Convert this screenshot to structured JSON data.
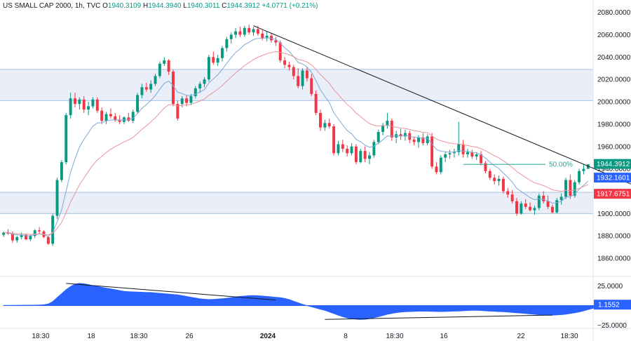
{
  "header": {
    "symbol": "US SMALL CAP 2000, 1h, TVC",
    "open_label": "O",
    "open": "1940.3109",
    "high_label": "H",
    "high": "1944.3940",
    "low_label": "L",
    "low": "1940.3011",
    "close_label": "C",
    "close": "1944.3912",
    "change": "+4.0771 (+0.21%)"
  },
  "colors": {
    "up": "#089981",
    "down": "#f23645",
    "ema_fast": "#7eaad6",
    "ema_slow": "#e8959b",
    "zone_fill": "#e9eef8",
    "zone_line": "#a9c4e8",
    "osc": "#2962ff",
    "trend": "#131722"
  },
  "chart_data": [
    {
      "type": "candlestick",
      "series_name": "US SMALL CAP 2000",
      "ylim": [
        1845,
        2086
      ],
      "y_ticks": [
        "2080.0000",
        "2060.0000",
        "2040.0000",
        "2020.0000",
        "2000.0000",
        "1980.0000",
        "1960.0000",
        "1940.0000",
        "1920.0000",
        "1900.0000",
        "1880.0000",
        "1860.0000"
      ],
      "x_ticks": [
        "18:30",
        "18",
        "18:30",
        "26",
        "2024",
        "8",
        "18:30",
        "16",
        "22",
        "18:30"
      ],
      "candles": [
        [
          1881,
          1884,
          1879,
          1883
        ],
        [
          1883,
          1886,
          1881,
          1882
        ],
        [
          1882,
          1884,
          1874,
          1876
        ],
        [
          1876,
          1880,
          1874,
          1879
        ],
        [
          1879,
          1883,
          1877,
          1881
        ],
        [
          1881,
          1882,
          1876,
          1877
        ],
        [
          1877,
          1881,
          1875,
          1880
        ],
        [
          1880,
          1886,
          1878,
          1885
        ],
        [
          1885,
          1888,
          1882,
          1884
        ],
        [
          1884,
          1885,
          1878,
          1879
        ],
        [
          1879,
          1880,
          1872,
          1873
        ],
        [
          1873,
          1900,
          1871,
          1898
        ],
        [
          1898,
          1932,
          1895,
          1930
        ],
        [
          1930,
          1948,
          1928,
          1946
        ],
        [
          1946,
          1990,
          1944,
          1988
        ],
        [
          1988,
          2008,
          1985,
          2003
        ],
        [
          2003,
          2008,
          1995,
          1998
        ],
        [
          1998,
          2004,
          1993,
          2002
        ],
        [
          2002,
          2005,
          1990,
          1993
        ],
        [
          1993,
          2000,
          1988,
          1996
        ],
        [
          1996,
          2004,
          1994,
          2002
        ],
        [
          2002,
          2004,
          1990,
          1992
        ],
        [
          1992,
          1995,
          1980,
          1983
        ],
        [
          1983,
          1991,
          1980,
          1989
        ],
        [
          1989,
          1994,
          1985,
          1987
        ],
        [
          1987,
          1990,
          1982,
          1984
        ],
        [
          1984,
          1988,
          1980,
          1982
        ],
        [
          1982,
          1987,
          1980,
          1986
        ],
        [
          1986,
          1990,
          1982,
          1983
        ],
        [
          1983,
          1993,
          1981,
          1991
        ],
        [
          1991,
          2008,
          1990,
          2006
        ],
        [
          2006,
          2016,
          2003,
          2013
        ],
        [
          2013,
          2017,
          2009,
          2011
        ],
        [
          2011,
          2019,
          2008,
          2016
        ],
        [
          2016,
          2025,
          2014,
          2023
        ],
        [
          2023,
          2036,
          2021,
          2034
        ],
        [
          2034,
          2040,
          2032,
          2037
        ],
        [
          2037,
          2038,
          2024,
          2027
        ],
        [
          2027,
          2029,
          1996,
          1998
        ],
        [
          1998,
          2001,
          1983,
          1985
        ],
        [
          1998,
          2005,
          1995,
          2003
        ],
        [
          2003,
          2006,
          1996,
          1999
        ],
        [
          1999,
          2007,
          1997,
          2005
        ],
        [
          2005,
          2014,
          2003,
          2012
        ],
        [
          2012,
          2018,
          2008,
          2016
        ],
        [
          2016,
          2022,
          2013,
          2020
        ],
        [
          2020,
          2042,
          2018,
          2040
        ],
        [
          2040,
          2045,
          2033,
          2035
        ],
        [
          2035,
          2042,
          2032,
          2039
        ],
        [
          2039,
          2050,
          2036,
          2048
        ],
        [
          2048,
          2058,
          2045,
          2056
        ],
        [
          2056,
          2062,
          2052,
          2060
        ],
        [
          2060,
          2066,
          2057,
          2063
        ],
        [
          2063,
          2067,
          2058,
          2060
        ],
        [
          2060,
          2068,
          2058,
          2066
        ],
        [
          2066,
          2069,
          2060,
          2062
        ],
        [
          2062,
          2067,
          2059,
          2065
        ],
        [
          2065,
          2068,
          2059,
          2061
        ],
        [
          2061,
          2064,
          2055,
          2057
        ],
        [
          2057,
          2063,
          2054,
          2059
        ],
        [
          2059,
          2061,
          2053,
          2055
        ],
        [
          2055,
          2058,
          2050,
          2053
        ],
        [
          2053,
          2055,
          2035,
          2037
        ],
        [
          2037,
          2040,
          2030,
          2033
        ],
        [
          2033,
          2036,
          2028,
          2031
        ],
        [
          2031,
          2033,
          2020,
          2023
        ],
        [
          2023,
          2030,
          2012,
          2014
        ],
        [
          2014,
          2030,
          2011,
          2028
        ],
        [
          2028,
          2031,
          2018,
          2021
        ],
        [
          2021,
          2025,
          2005,
          2007
        ],
        [
          2007,
          2010,
          1988,
          1990
        ],
        [
          1990,
          1993,
          1974,
          1977
        ],
        [
          1977,
          1984,
          1974,
          1981
        ],
        [
          1981,
          1985,
          1976,
          1978
        ],
        [
          1978,
          1980,
          1952,
          1954
        ],
        [
          1954,
          1965,
          1952,
          1962
        ],
        [
          1962,
          1966,
          1955,
          1958
        ],
        [
          1958,
          1961,
          1951,
          1954
        ],
        [
          1954,
          1963,
          1952,
          1960
        ],
        [
          1960,
          1962,
          1944,
          1946
        ],
        [
          1946,
          1958,
          1945,
          1956
        ],
        [
          1956,
          1960,
          1946,
          1949
        ],
        [
          1949,
          1955,
          1944,
          1952
        ],
        [
          1952,
          1966,
          1950,
          1964
        ],
        [
          1964,
          1975,
          1962,
          1973
        ],
        [
          1973,
          1981,
          1970,
          1979
        ],
        [
          1979,
          1990,
          1976,
          1983
        ],
        [
          1983,
          1985,
          1965,
          1968
        ],
        [
          1968,
          1974,
          1963,
          1971
        ],
        [
          1971,
          1976,
          1966,
          1969
        ],
        [
          1969,
          1975,
          1965,
          1972
        ],
        [
          1972,
          1974,
          1963,
          1966
        ],
        [
          1966,
          1969,
          1961,
          1964
        ],
        [
          1964,
          1970,
          1959,
          1968
        ],
        [
          1968,
          1972,
          1961,
          1963
        ],
        [
          1963,
          1971,
          1961,
          1969
        ],
        [
          1969,
          1972,
          1940,
          1942
        ],
        [
          1942,
          1946,
          1935,
          1937
        ],
        [
          1937,
          1952,
          1935,
          1950
        ],
        [
          1950,
          1955,
          1946,
          1953
        ],
        [
          1953,
          1957,
          1949,
          1954
        ],
        [
          1954,
          1958,
          1950,
          1955
        ],
        [
          1955,
          1982,
          1952,
          1962
        ],
        [
          1962,
          1966,
          1950,
          1953
        ],
        [
          1953,
          1958,
          1950,
          1955
        ],
        [
          1955,
          1957,
          1949,
          1951
        ],
        [
          1951,
          1955,
          1948,
          1953
        ],
        [
          1953,
          1956,
          1943,
          1945
        ],
        [
          1945,
          1947,
          1936,
          1938
        ],
        [
          1938,
          1940,
          1930,
          1932
        ],
        [
          1932,
          1935,
          1926,
          1929
        ],
        [
          1929,
          1934,
          1925,
          1931
        ],
        [
          1931,
          1933,
          1918,
          1920
        ],
        [
          1920,
          1923,
          1914,
          1917
        ],
        [
          1917,
          1921,
          1909,
          1911
        ],
        [
          1911,
          1914,
          1898,
          1900
        ],
        [
          1900,
          1911,
          1899,
          1909
        ],
        [
          1909,
          1913,
          1904,
          1906
        ],
        [
          1906,
          1910,
          1902,
          1903
        ],
        [
          1903,
          1907,
          1899,
          1905
        ],
        [
          1905,
          1918,
          1903,
          1916
        ],
        [
          1916,
          1920,
          1909,
          1911
        ],
        [
          1911,
          1916,
          1904,
          1906
        ],
        [
          1906,
          1908,
          1900,
          1901
        ],
        [
          1901,
          1914,
          1900,
          1912
        ],
        [
          1912,
          1918,
          1908,
          1915
        ],
        [
          1915,
          1932,
          1913,
          1930
        ],
        [
          1930,
          1935,
          1913,
          1916
        ],
        [
          1916,
          1930,
          1914,
          1928
        ],
        [
          1928,
          1940,
          1926,
          1938
        ],
        [
          1938,
          1944,
          1935,
          1940
        ],
        [
          1940,
          1944,
          1940,
          1944
        ]
      ],
      "last_price": "1944.3912",
      "ema_fast_value": "1932.1601",
      "ema_slow_value": "1917.6751",
      "zones": [
        [
          2001,
          2029
        ],
        [
          1900,
          1919
        ]
      ],
      "fib_label": "50.00%",
      "fib_level": 1944,
      "trendline": [
        [
          56,
          2068
        ],
        [
          145,
          1919
        ]
      ]
    },
    {
      "type": "area",
      "series_name": "Oscillator",
      "ylim": [
        -27,
        35
      ],
      "y_ticks": [
        "25.0000",
        "−25.0000"
      ],
      "last_value": "1.1552",
      "values": [
        0.3,
        0.3,
        0.3,
        0.4,
        0.4,
        0.5,
        0.5,
        0.5,
        0.6,
        1,
        2,
        5,
        10,
        15,
        20,
        24,
        27,
        28,
        27.5,
        26.5,
        25,
        24,
        23,
        22,
        21,
        20,
        19,
        18,
        17.5,
        17.3,
        17,
        16.8,
        16.5,
        16.5,
        16,
        15.5,
        15,
        14.5,
        14,
        13.5,
        12.5,
        11.5,
        10.5,
        9.5,
        8.5,
        8,
        7.5,
        7.8,
        8.2,
        8.6,
        9.2,
        10,
        10.8,
        11.5,
        12,
        12.5,
        12.6,
        12.4,
        12,
        11.5,
        11,
        10.5,
        10,
        9,
        7.5,
        5.5,
        3.5,
        1.5,
        0,
        -1.5,
        -3,
        -4.5,
        -6,
        -8,
        -10,
        -12,
        -14,
        -15.5,
        -16.5,
        -17.2,
        -17.5,
        -17.3,
        -16.5,
        -15.2,
        -14,
        -12.5,
        -11,
        -9.8,
        -8.8,
        -8.2,
        -7.8,
        -7.5,
        -7.3,
        -7.1,
        -7,
        -7.1,
        -7.3,
        -7.4,
        -7.5,
        -7.4,
        -7.2,
        -7,
        -6.8,
        -6.5,
        -6.2,
        -6,
        -6,
        -6.2,
        -6.6,
        -7,
        -7.2,
        -7.5,
        -7.8,
        -8.2,
        -8.6,
        -9,
        -9.5,
        -10,
        -10.5,
        -11,
        -11.5,
        -11.8,
        -12,
        -12,
        -11.8,
        -11.4,
        -10.8,
        -10,
        -9,
        -8,
        -6.5,
        -5,
        -3.5,
        -1.8,
        -0.2,
        1.1552
      ],
      "divergence_lines": [
        [
          [
            14,
            28
          ],
          [
            61,
            7
          ]
        ],
        [
          [
            72,
            -17.5
          ],
          [
            123,
            -12
          ]
        ]
      ]
    }
  ]
}
